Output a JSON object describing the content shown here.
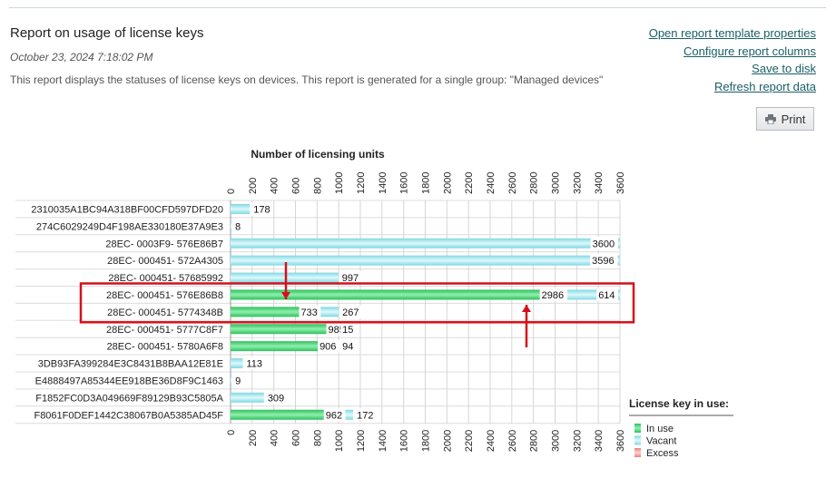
{
  "report": {
    "title": "Report on usage of license keys",
    "date": "October 23, 2024 7:18:02 PM",
    "description": "This report displays the statuses of license keys on devices. This report is generated for a single group: \"Managed devices\""
  },
  "links": [
    "Open report template properties",
    "Configure report columns",
    "Save to disk",
    "Refresh report data"
  ],
  "print_label": "Print",
  "colors": {
    "in_use": "#3fcf6e",
    "vacant": "#a8e8ee",
    "excess": "#f29a9a",
    "highlight": "#d4111b",
    "link": "#1a5e67"
  },
  "chart_data": {
    "type": "bar",
    "orientation": "horizontal",
    "stacked": true,
    "title": "Number of licensing units",
    "xlim": [
      0,
      3600
    ],
    "x_ticks": [
      0,
      200,
      400,
      600,
      800,
      1000,
      1200,
      1400,
      1600,
      1800,
      2000,
      2200,
      2400,
      2600,
      2800,
      3000,
      3200,
      3400,
      3600
    ],
    "grid": true,
    "categories": [
      "2310035A1BC94A318BF00CFD597DFD20",
      "274C6029249D4F198AE330180E37A9E3",
      "28EC- 0003F9- 576E86B7",
      "28EC- 000451- 572A4305",
      "28EC- 000451- 57685992",
      "28EC- 000451- 576E86B8",
      "28EC- 000451- 5774348B",
      "28EC- 000451- 5777C8F7",
      "28EC- 000451- 5780A6F8",
      "3DB93FA399284E3C8431B8BAA12E81E",
      "E4888497A85344EE918BE36D8F9C1463",
      "F1852FC0D3A049669F89129B93C5805A",
      "F8061F0DEF1442C38067B0A5385AD45F"
    ],
    "series": [
      {
        "name": "In use",
        "values": [
          0,
          0,
          0,
          0,
          0,
          2986,
          733,
          985,
          906,
          0,
          0,
          0,
          962
        ]
      },
      {
        "name": "Vacant",
        "values": [
          178,
          8,
          3600,
          3596,
          997,
          614,
          267,
          15,
          94,
          113,
          9,
          309,
          172
        ]
      },
      {
        "name": "Excess",
        "values": [
          0,
          0,
          0,
          0,
          0,
          0,
          0,
          0,
          0,
          0,
          0,
          0,
          0
        ]
      }
    ],
    "data_labels": [
      [
        "178"
      ],
      [
        "8"
      ],
      [
        "3600"
      ],
      [
        "3596"
      ],
      [
        "997"
      ],
      [
        "2986",
        "614"
      ],
      [
        "733",
        "267"
      ],
      [
        "985",
        "15"
      ],
      [
        "906",
        "94"
      ],
      [
        "113"
      ],
      [
        "9"
      ],
      [
        "309"
      ],
      [
        "962",
        "172"
      ]
    ],
    "legend": {
      "title": "License key in use:",
      "position": "bottom-right",
      "items": [
        "In use",
        "Vacant",
        "Excess"
      ]
    },
    "highlight_rows": [
      5,
      6
    ]
  }
}
